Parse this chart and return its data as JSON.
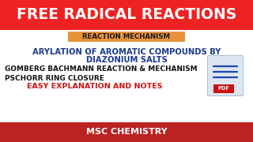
{
  "title": "FREE RADICAL REACTIONS",
  "title_bg": "#ee2222",
  "title_color": "#ffffff",
  "subtitle_box_text": "REACTION MECHANISM",
  "subtitle_box_bg": "#e8923a",
  "subtitle_box_text_color": "#1a1a1a",
  "line1": "ARYLATION OF AROMATIC COMPOUNDS BY",
  "line2": "DIAZONIUM SALTS",
  "line3": "GOMBERG BACHMANN REACTION & MECHANISM",
  "line4": "PSCHORR RING CLOSURE",
  "line5": "EASY EXPLANATION AND NOTES",
  "line5_color": "#cc1111",
  "body_text_color": "#1a3a8a",
  "bottom_bar_text": "MSC CHEMISTRY",
  "bottom_bar_bg": "#bb2222",
  "bottom_bar_text_color": "#ffffff",
  "bg_color": "#ffffff",
  "line3_color": "#111111",
  "line4_color": "#111111"
}
